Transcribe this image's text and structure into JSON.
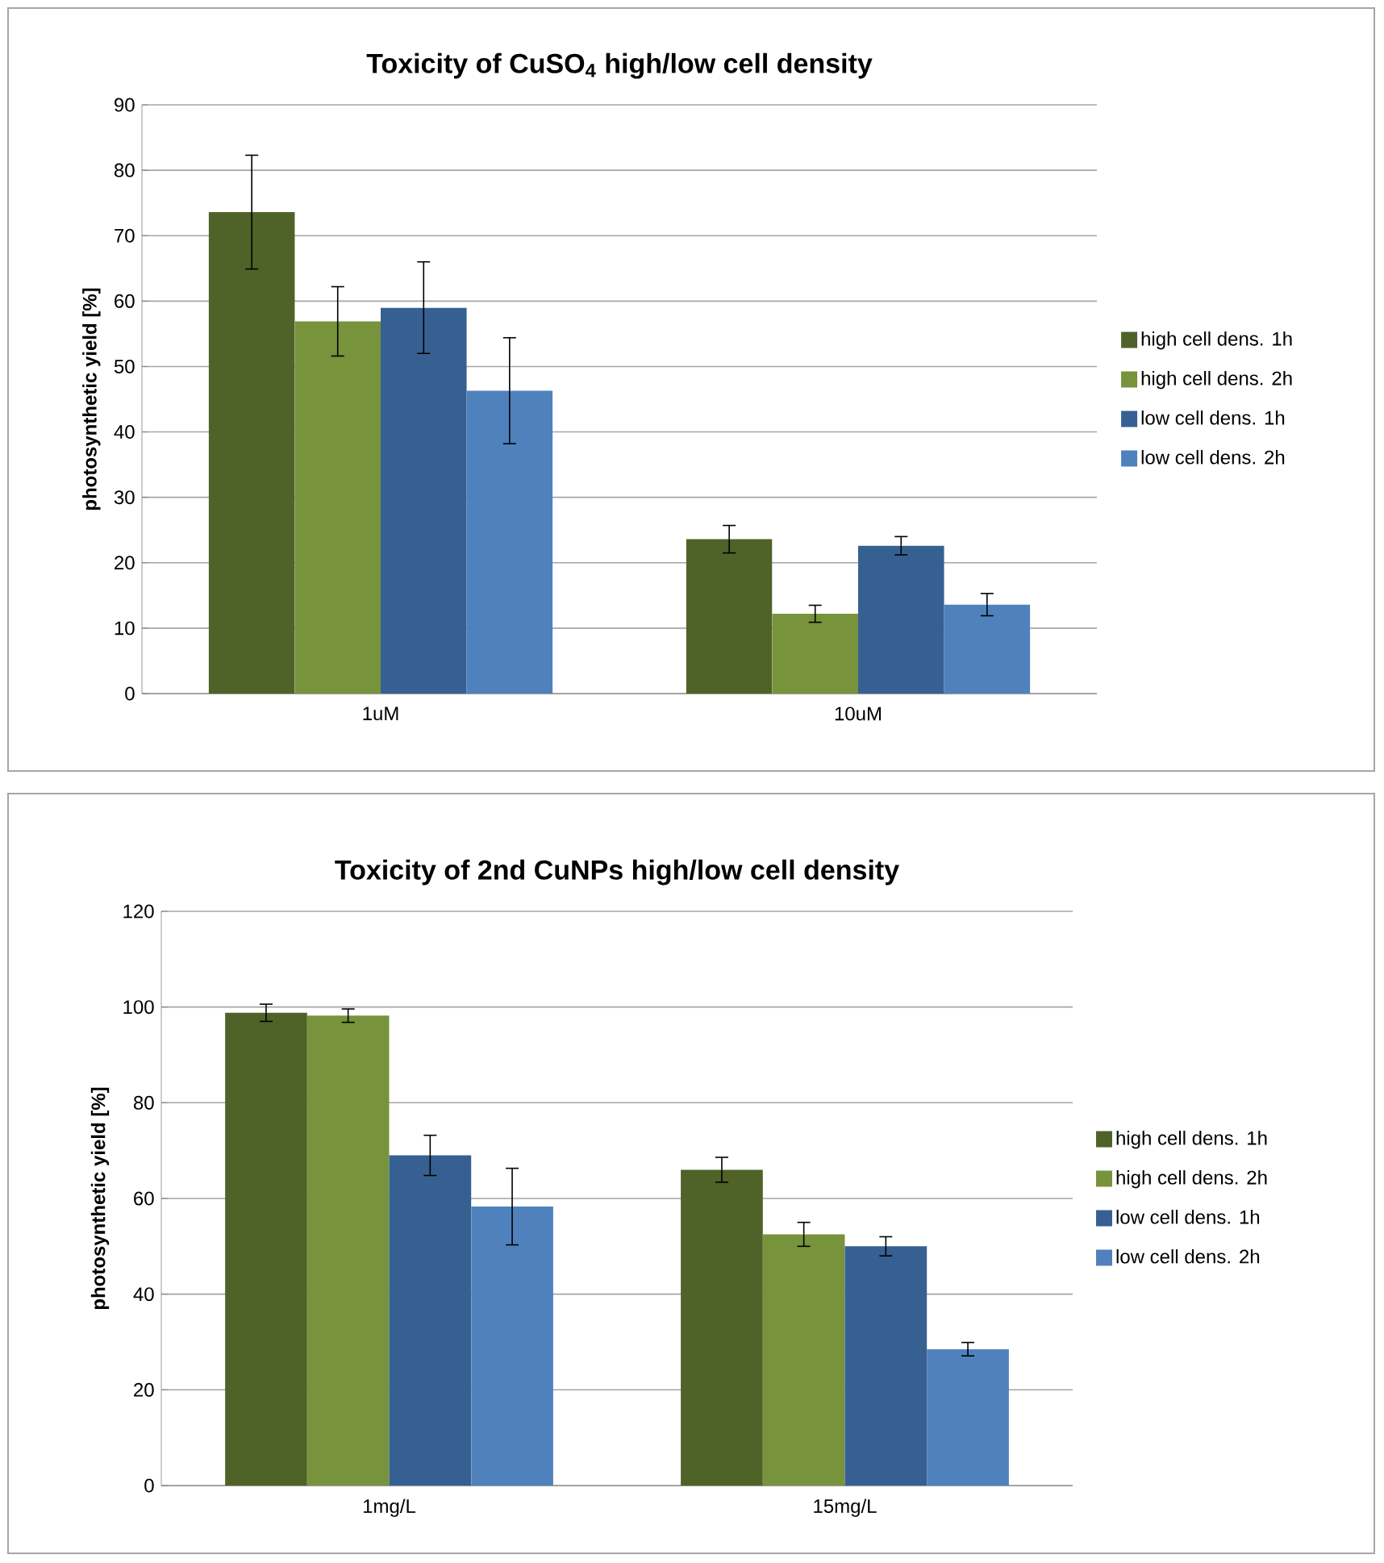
{
  "chart_data": [
    {
      "type": "bar",
      "title": "Toxicity of CuSO$_{4}$ high/low cell density",
      "ylabel": "photosynthetic yield [%]",
      "categories": [
        "1uM",
        "10uM"
      ],
      "series": [
        {
          "name": "high cell dens. 1h",
          "color": "#4f6228",
          "values": [
            73.6,
            23.6
          ],
          "errors": [
            8.7,
            2.1
          ]
        },
        {
          "name": "high cell dens. 2h",
          "color": "#77933c",
          "values": [
            56.9,
            12.2
          ],
          "errors": [
            5.3,
            1.3
          ]
        },
        {
          "name": "low cell dens. 1h",
          "color": "#376092",
          "values": [
            59,
            22.6
          ],
          "errors": [
            7,
            1.4
          ]
        },
        {
          "name": "low cell dens. 2h",
          "color": "#4f81bd",
          "values": [
            46.3,
            13.6
          ],
          "errors": [
            8.1,
            1.7
          ]
        }
      ],
      "ylim": [
        0,
        90
      ],
      "yticks": [
        0,
        10,
        20,
        30,
        40,
        50,
        60,
        70,
        80,
        90
      ],
      "grid": "y",
      "legend": "right"
    },
    {
      "type": "bar",
      "title": "Toxicity of 2nd CuNPs high/low cell density",
      "ylabel": "photosynthetic yield [%]",
      "categories": [
        "1mg/L",
        "15mg/L"
      ],
      "series": [
        {
          "name": "high cell dens. 1h",
          "color": "#4f6228",
          "values": [
            98.8,
            66
          ],
          "errors": [
            1.8,
            2.6
          ]
        },
        {
          "name": "high cell dens. 2h",
          "color": "#77933c",
          "values": [
            98.2,
            52.5
          ],
          "errors": [
            1.4,
            2.5
          ]
        },
        {
          "name": "low cell dens. 1h",
          "color": "#376092",
          "values": [
            69,
            50
          ],
          "errors": [
            4.2,
            2
          ]
        },
        {
          "name": "low cell dens. 2h",
          "color": "#4f81bd",
          "values": [
            58.3,
            28.5
          ],
          "errors": [
            8,
            1.4
          ]
        }
      ],
      "ylim": [
        0,
        120
      ],
      "yticks": [
        0,
        20,
        40,
        60,
        80,
        100,
        120
      ],
      "grid": "y",
      "legend": "right"
    }
  ]
}
